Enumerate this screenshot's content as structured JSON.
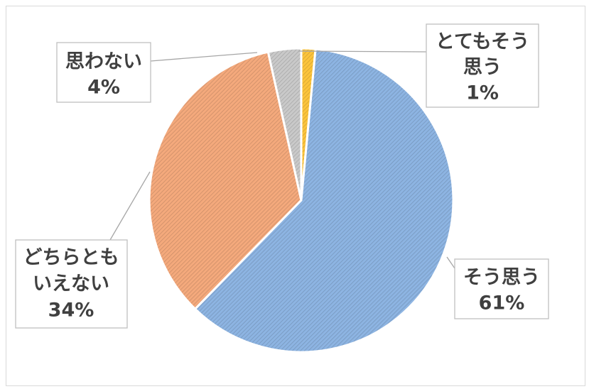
{
  "chart_data": {
    "type": "pie",
    "title": "",
    "slices": [
      {
        "label_lines": [
          "とてもそう",
          "思う"
        ],
        "percent": "1%",
        "value": 1.5,
        "color": "#fcc43c"
      },
      {
        "label_lines": [
          "そう思う"
        ],
        "percent": "61%",
        "value": 60.8,
        "color": "#8db4e2"
      },
      {
        "label_lines": [
          "どちらとも",
          "いえない"
        ],
        "percent": "34%",
        "value": 34.2,
        "color": "#f4a97c"
      },
      {
        "label_lines": [
          "思わない"
        ],
        "percent": "4%",
        "value": 3.5,
        "color": "#c9c9c9"
      }
    ],
    "start_angle_deg": 0,
    "direction": "clockwise",
    "legend": "none",
    "data_labels": "category and percent, outside with leader lines",
    "fill_pattern": "diagonal hatch"
  }
}
